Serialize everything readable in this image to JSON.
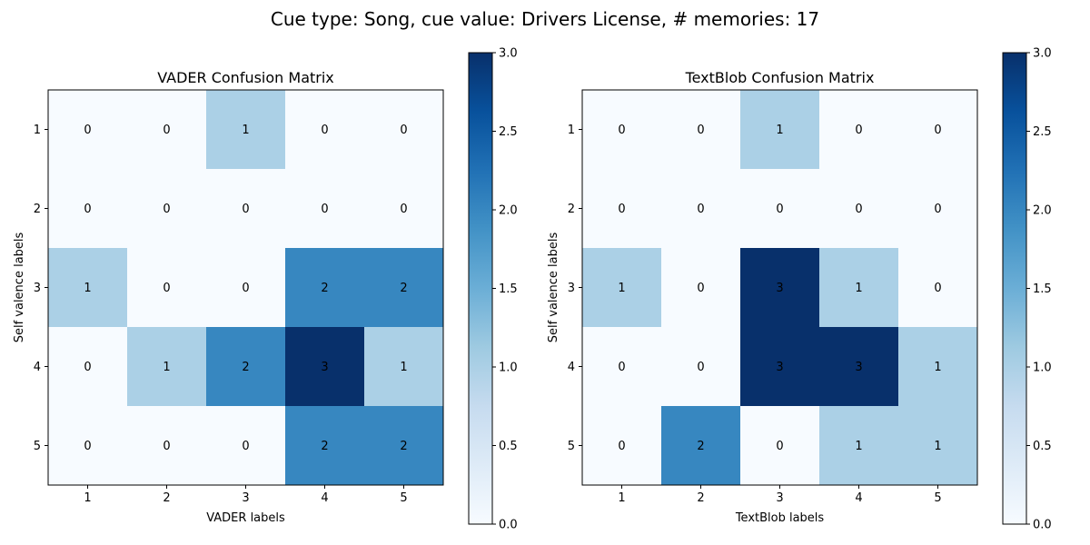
{
  "figure": {
    "suptitle": "Cue type: Song, cue value: Drivers License, # memories: 17"
  },
  "colormap": {
    "name": "Blues",
    "stops": [
      "#f7fbff",
      "#deebf7",
      "#c6dbef",
      "#9ecae1",
      "#6baed6",
      "#4292c6",
      "#2171b5",
      "#08519c",
      "#08306b"
    ],
    "text_light": "#ffffff",
    "text_dark": "#08306b"
  },
  "chart_data": [
    {
      "type": "heatmap",
      "title": "VADER Confusion Matrix",
      "xlabel": "VADER labels",
      "ylabel": "Self valence labels",
      "x_categories": [
        "1",
        "2",
        "3",
        "4",
        "5"
      ],
      "y_categories": [
        "1",
        "2",
        "3",
        "4",
        "5"
      ],
      "matrix": [
        [
          0,
          0,
          1,
          0,
          0
        ],
        [
          0,
          0,
          0,
          0,
          0
        ],
        [
          1,
          0,
          0,
          2,
          2
        ],
        [
          0,
          1,
          2,
          3,
          1
        ],
        [
          0,
          0,
          0,
          2,
          2
        ]
      ],
      "colorbar": {
        "range": [
          0,
          3
        ],
        "ticks": [
          "0.0",
          "0.5",
          "1.0",
          "1.5",
          "2.0",
          "2.5",
          "3.0"
        ]
      }
    },
    {
      "type": "heatmap",
      "title": "TextBlob Confusion Matrix",
      "xlabel": "TextBlob labels",
      "ylabel": "Self valence labels",
      "x_categories": [
        "1",
        "2",
        "3",
        "4",
        "5"
      ],
      "y_categories": [
        "1",
        "2",
        "3",
        "4",
        "5"
      ],
      "matrix": [
        [
          0,
          0,
          1,
          0,
          0
        ],
        [
          0,
          0,
          0,
          0,
          0
        ],
        [
          1,
          0,
          3,
          1,
          0
        ],
        [
          0,
          0,
          3,
          3,
          1
        ],
        [
          0,
          2,
          0,
          1,
          1
        ]
      ],
      "colorbar": {
        "range": [
          0,
          3
        ],
        "ticks": [
          "0.0",
          "0.5",
          "1.0",
          "1.5",
          "2.0",
          "2.5",
          "3.0"
        ]
      }
    }
  ]
}
